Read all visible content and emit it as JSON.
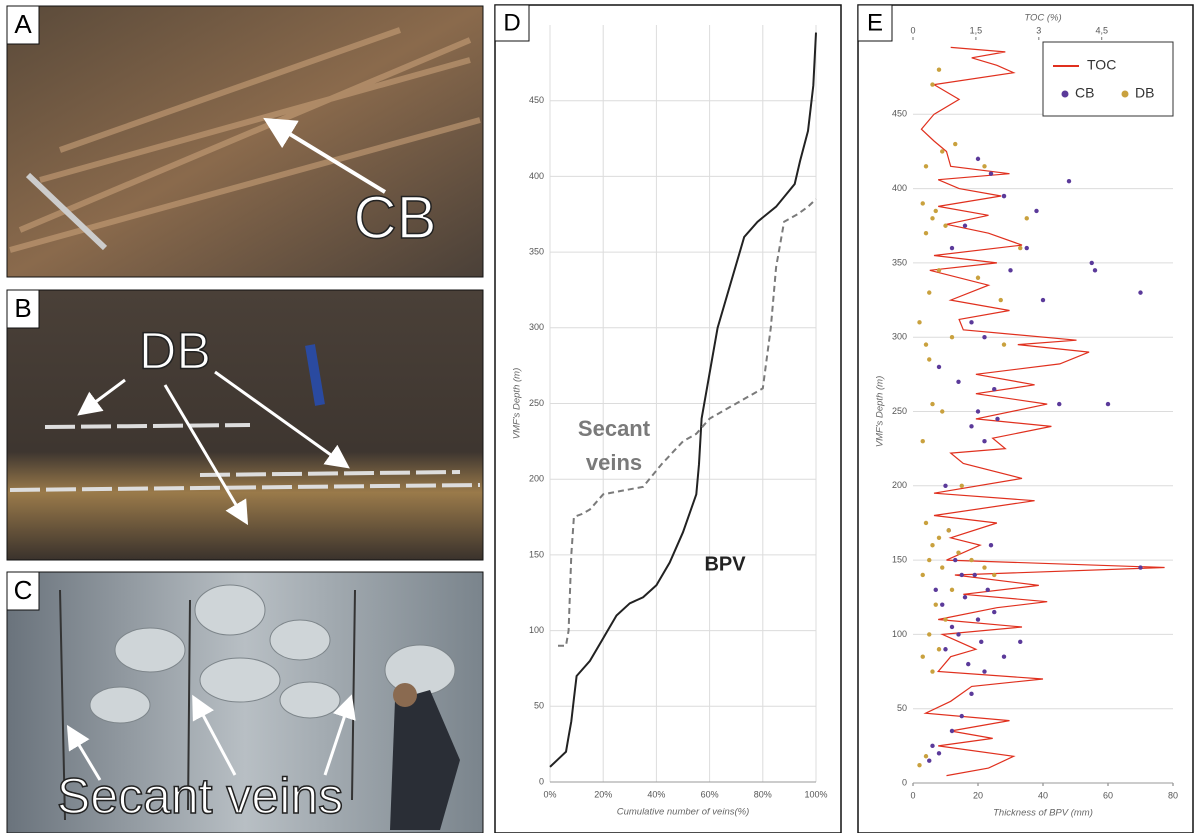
{
  "panels": [
    {
      "label": "A",
      "annotation": "CB"
    },
    {
      "label": "B",
      "annotation": "DB"
    },
    {
      "label": "C",
      "annotation": "Secant veins"
    }
  ],
  "chart_data": [
    {
      "type": "line",
      "panel_label": "D",
      "x_label": "Cumulative number of veins(%)",
      "y_label": "VMF's Depth (m)",
      "xlim": [
        0,
        100
      ],
      "xticks": [
        {
          "value": 0,
          "label": "0%"
        },
        {
          "value": 20,
          "label": "20%"
        },
        {
          "value": 40,
          "label": "40%"
        },
        {
          "value": 60,
          "label": "60%"
        },
        {
          "value": 80,
          "label": "80%"
        },
        {
          "value": 100,
          "label": "100%"
        }
      ],
      "ylim": [
        0,
        500
      ],
      "yticks": [
        0,
        50,
        100,
        150,
        200,
        250,
        300,
        350,
        400,
        450
      ],
      "grid": true,
      "series": [
        {
          "name": "BPV",
          "color": "#222222",
          "dash": false,
          "x": [
            0,
            3,
            6,
            7,
            8,
            9,
            10,
            15,
            20,
            25,
            30,
            35,
            40,
            45,
            50,
            55,
            56,
            57,
            60,
            63,
            68,
            73,
            78,
            85,
            92,
            94,
            97,
            99,
            100
          ],
          "values": [
            10,
            15,
            20,
            30,
            40,
            55,
            70,
            80,
            95,
            110,
            118,
            122,
            130,
            145,
            165,
            190,
            210,
            240,
            270,
            300,
            330,
            360,
            370,
            380,
            395,
            410,
            430,
            460,
            495
          ]
        },
        {
          "name": "Secant veins",
          "color": "#7a7a7a",
          "dash": true,
          "x": [
            3,
            6,
            7,
            8,
            9,
            12,
            15,
            20,
            35,
            42,
            50,
            55,
            60,
            70,
            80,
            83,
            85,
            88,
            93,
            97,
            100
          ],
          "values": [
            90,
            90,
            100,
            150,
            175,
            177,
            180,
            190,
            195,
            210,
            225,
            230,
            240,
            250,
            260,
            300,
            340,
            370,
            375,
            380,
            385
          ]
        }
      ]
    },
    {
      "type": "scatter",
      "panel_label": "E",
      "x_label": "Thickness of BPV (mm)",
      "x2_label": "TOC (%)",
      "y_label": "VMF's Depth (m)",
      "xlim": [
        0,
        80
      ],
      "xticks": [
        0,
        20,
        40,
        60,
        80
      ],
      "x2lim": [
        0,
        6.2
      ],
      "x2ticks": [
        0,
        {
          "value": 1.5,
          "label": "1,5"
        },
        3,
        {
          "value": 4.5,
          "label": "4,5"
        }
      ],
      "ylim": [
        0,
        500
      ],
      "yticks": [
        0,
        50,
        100,
        150,
        200,
        250,
        300,
        350,
        400,
        450
      ],
      "grid": true,
      "legend": "top-right",
      "series": [
        {
          "name": "TOC",
          "type": "line",
          "axis": "x2",
          "color": "#e0301e",
          "x": [
            0.8,
            1.8,
            2.4,
            0.6,
            1.9,
            0.9,
            2.3,
            0.3,
            0.9,
            1.4,
            3.1,
            0.6,
            0.9,
            1.5,
            0.7,
            2.6,
            0.6,
            2.0,
            3.2,
            1.2,
            3.0,
            1.0,
            6.0,
            0.8,
            1.6,
            0.9,
            2.0,
            0.5,
            2.9,
            0.5,
            2.6,
            1.2,
            0.9,
            2.2,
            1.9,
            3.3,
            1.5,
            3.2,
            1.5,
            2.9,
            1.5,
            3.5,
            4.2,
            2.5,
            3.9,
            1.2,
            1.1,
            2.3,
            0.9,
            1.8,
            0.4,
            2.0,
            0.5,
            2.6,
            1.8,
            0.8,
            1.8,
            0.6,
            2.1,
            1.1,
            0.6,
            2.3,
            0.9,
            0.8,
            0.5,
            0.2,
            0.5,
            1.1,
            0.5,
            2.4,
            2.0,
            1.4,
            2.2,
            0.9
          ],
          "values": [
            5,
            10,
            18,
            25,
            30,
            35,
            42,
            47,
            55,
            65,
            70,
            75,
            85,
            90,
            100,
            105,
            110,
            118,
            122,
            127,
            133,
            140,
            145,
            150,
            160,
            165,
            175,
            180,
            190,
            195,
            205,
            215,
            222,
            225,
            232,
            240,
            245,
            255,
            262,
            268,
            275,
            282,
            290,
            295,
            298,
            305,
            312,
            318,
            325,
            335,
            345,
            350,
            355,
            362,
            370,
            376,
            382,
            388,
            395,
            400,
            406,
            410,
            415,
            425,
            432,
            440,
            450,
            460,
            470,
            478,
            483,
            488,
            492,
            495
          ]
        },
        {
          "name": "CB",
          "type": "scatter",
          "color": "#5b3a9a",
          "x": [
            5,
            8,
            12,
            15,
            18,
            22,
            10,
            14,
            20,
            25,
            9,
            16,
            7,
            19,
            13,
            24,
            11,
            17,
            6,
            21,
            28,
            15,
            12,
            23,
            33,
            18,
            26,
            20,
            45,
            22,
            55,
            35,
            70,
            30,
            56,
            28,
            20,
            24,
            38,
            16,
            12,
            48,
            22,
            40,
            8,
            60,
            14,
            25,
            18,
            10,
            28,
            70
          ],
          "values": [
            15,
            20,
            35,
            45,
            60,
            75,
            90,
            100,
            110,
            115,
            120,
            125,
            130,
            140,
            150,
            160,
            170,
            80,
            25,
            95,
            85,
            140,
            105,
            130,
            95,
            240,
            245,
            250,
            255,
            230,
            350,
            360,
            330,
            345,
            345,
            395,
            420,
            410,
            385,
            375,
            360,
            405,
            300,
            325,
            280,
            255,
            270,
            265,
            310,
            200,
            395,
            145
          ]
        },
        {
          "name": "DB",
          "type": "scatter",
          "color": "#c9a13e",
          "x": [
            2,
            4,
            6,
            3,
            8,
            5,
            10,
            7,
            12,
            3,
            9,
            5,
            14,
            6,
            8,
            11,
            4,
            18,
            22,
            25,
            3,
            6,
            9,
            5,
            12,
            4,
            2,
            5,
            8,
            4,
            10,
            6,
            7,
            3,
            20,
            33,
            27,
            4,
            22,
            9,
            13,
            6,
            28,
            35,
            15,
            8
          ],
          "values": [
            12,
            18,
            75,
            85,
            90,
            100,
            110,
            120,
            130,
            140,
            145,
            150,
            155,
            160,
            165,
            170,
            175,
            150,
            145,
            140,
            230,
            255,
            250,
            285,
            300,
            295,
            310,
            330,
            345,
            370,
            375,
            380,
            385,
            390,
            340,
            360,
            325,
            415,
            415,
            425,
            430,
            470,
            295,
            380,
            200,
            480
          ]
        }
      ]
    }
  ]
}
